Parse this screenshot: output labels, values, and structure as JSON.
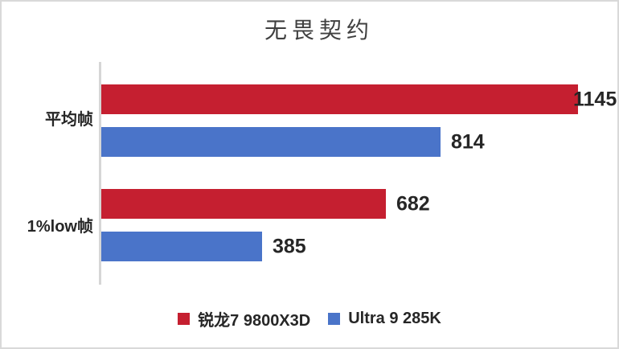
{
  "chart_data": {
    "type": "bar",
    "orientation": "horizontal",
    "title": "无畏契约",
    "categories": [
      "平均帧",
      "1%low帧"
    ],
    "series": [
      {
        "name": "锐龙7 9800X3D",
        "color": "#C51F30",
        "values": [
          1145,
          682
        ]
      },
      {
        "name": "Ultra 9 285K",
        "color": "#4A74C9",
        "values": [
          814,
          385
        ]
      }
    ],
    "xlim": [
      0,
      1200
    ],
    "value_labels": "outside-end",
    "legend_position": "bottom",
    "grid": false,
    "axis_color": "#D6D6D6",
    "text_color": "#262626",
    "title_color": "#3F3F3F"
  }
}
